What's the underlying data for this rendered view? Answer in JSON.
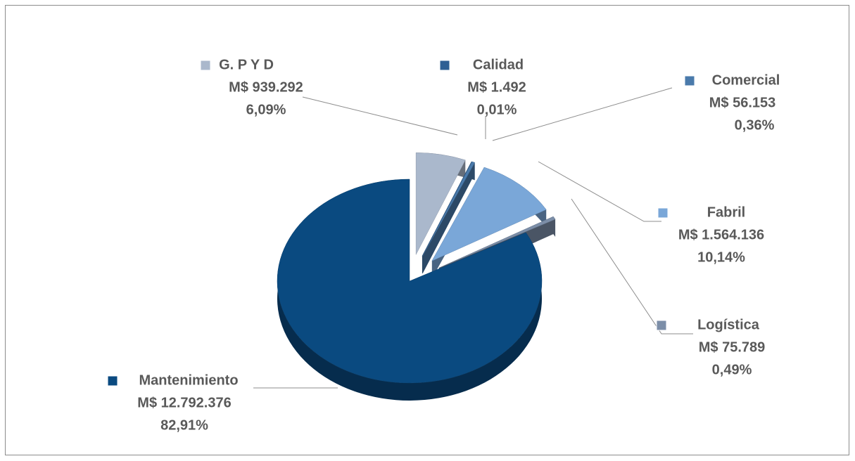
{
  "chart_data": {
    "type": "pie",
    "categories": [
      "G. P Y D",
      "Calidad",
      "Comercial",
      "Fabril",
      "Logística",
      "Mantenimiento"
    ],
    "values": [
      939292,
      1492,
      56153,
      1564136,
      75789,
      12792376
    ],
    "value_labels": [
      "M$ 939.292",
      "M$ 1.492",
      "M$ 56.153",
      "M$ 1.564.136",
      "M$ 75.789",
      "M$ 12.792.376"
    ],
    "percents": [
      6.09,
      0.01,
      0.36,
      10.14,
      0.49,
      82.91
    ],
    "percent_labels": [
      "6,09%",
      "0,01%",
      "0,36%",
      "10,14%",
      "0,49%",
      "82,91%"
    ],
    "colors": [
      "#aab8cc",
      "#2e5f94",
      "#4a7aab",
      "#7aa7d8",
      "#7c8ea8",
      "#0a4a80"
    ],
    "legend": "beside-labels"
  }
}
